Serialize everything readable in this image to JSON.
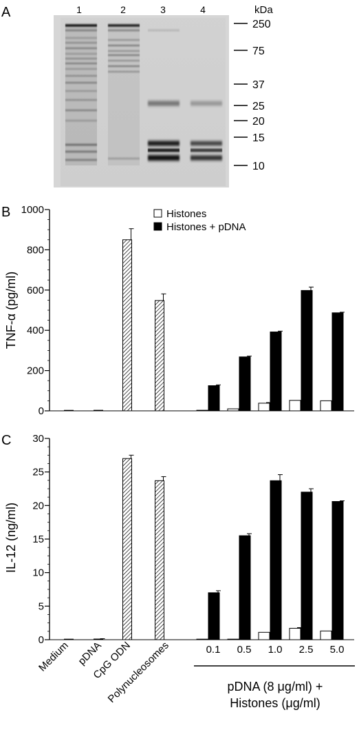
{
  "panel_a": {
    "letter": "A",
    "lane_labels": [
      "1",
      "2",
      "3",
      "4"
    ],
    "unit_label": "kDa",
    "markers": [
      "250",
      "75",
      "37",
      "25",
      "20",
      "15",
      "10"
    ]
  },
  "x_group": {
    "controls": [
      "Medium",
      "pDNA",
      "CpG ODN",
      "Polynucleosomes"
    ],
    "doses": [
      "0.1",
      "0.5",
      "1.0",
      "2.5",
      "5.0"
    ],
    "group_line1": "pDNA (8 μg/ml) +",
    "group_line2": "Histones (μg/ml)"
  },
  "chart_data": [
    {
      "type": "bar",
      "panel": "B",
      "ylabel": "TNF-α (pg/ml)",
      "ylim": [
        0,
        1000
      ],
      "yticks": [
        0,
        200,
        400,
        600,
        800,
        1000
      ],
      "legend": {
        "placement": "top-right",
        "entries": [
          "Histones",
          "Histones + pDNA"
        ]
      },
      "controls": {
        "categories": [
          "Medium",
          "pDNA",
          "CpG ODN",
          "Polynucleosomes"
        ],
        "values": [
          0,
          3,
          850,
          548
        ],
        "errors": [
          0,
          0,
          55,
          33
        ],
        "fills": [
          "hatched",
          "hatched",
          "hatched",
          "hatched"
        ]
      },
      "categories": [
        "0.1",
        "0.5",
        "1.0",
        "2.5",
        "5.0"
      ],
      "series": [
        {
          "name": "Histones",
          "color": "#ffffff",
          "values": [
            3,
            10,
            38,
            52,
            50
          ],
          "errors": [
            0,
            0,
            3,
            0,
            0
          ]
        },
        {
          "name": "Histones + pDNA",
          "color": "#000000",
          "values": [
            125,
            268,
            392,
            598,
            487
          ],
          "errors": [
            4,
            4,
            4,
            17,
            3
          ]
        }
      ]
    },
    {
      "type": "bar",
      "panel": "C",
      "ylabel": "IL-12 (ng/ml)",
      "ylim": [
        0,
        30
      ],
      "yticks": [
        0,
        5,
        10,
        15,
        20,
        25,
        30
      ],
      "controls": {
        "categories": [
          "Medium",
          "pDNA",
          "CpG ODN",
          "Polynucleosomes"
        ],
        "values": [
          0,
          0.1,
          27,
          23.7
        ],
        "errors": [
          0,
          0.05,
          0.5,
          0.6
        ],
        "fills": [
          "hatched",
          "hatched",
          "hatched",
          "hatched"
        ]
      },
      "categories": [
        "0.1",
        "0.5",
        "1.0",
        "2.5",
        "5.0"
      ],
      "series": [
        {
          "name": "Histones",
          "color": "#ffffff",
          "values": [
            0,
            0.05,
            1.1,
            1.7,
            1.3
          ],
          "errors": [
            0,
            0,
            0,
            0.1,
            0
          ]
        },
        {
          "name": "Histones + pDNA",
          "color": "#000000",
          "values": [
            7.0,
            15.5,
            23.7,
            22.0,
            20.6
          ],
          "errors": [
            0.3,
            0.3,
            0.9,
            0.5,
            0.1
          ]
        }
      ]
    }
  ]
}
